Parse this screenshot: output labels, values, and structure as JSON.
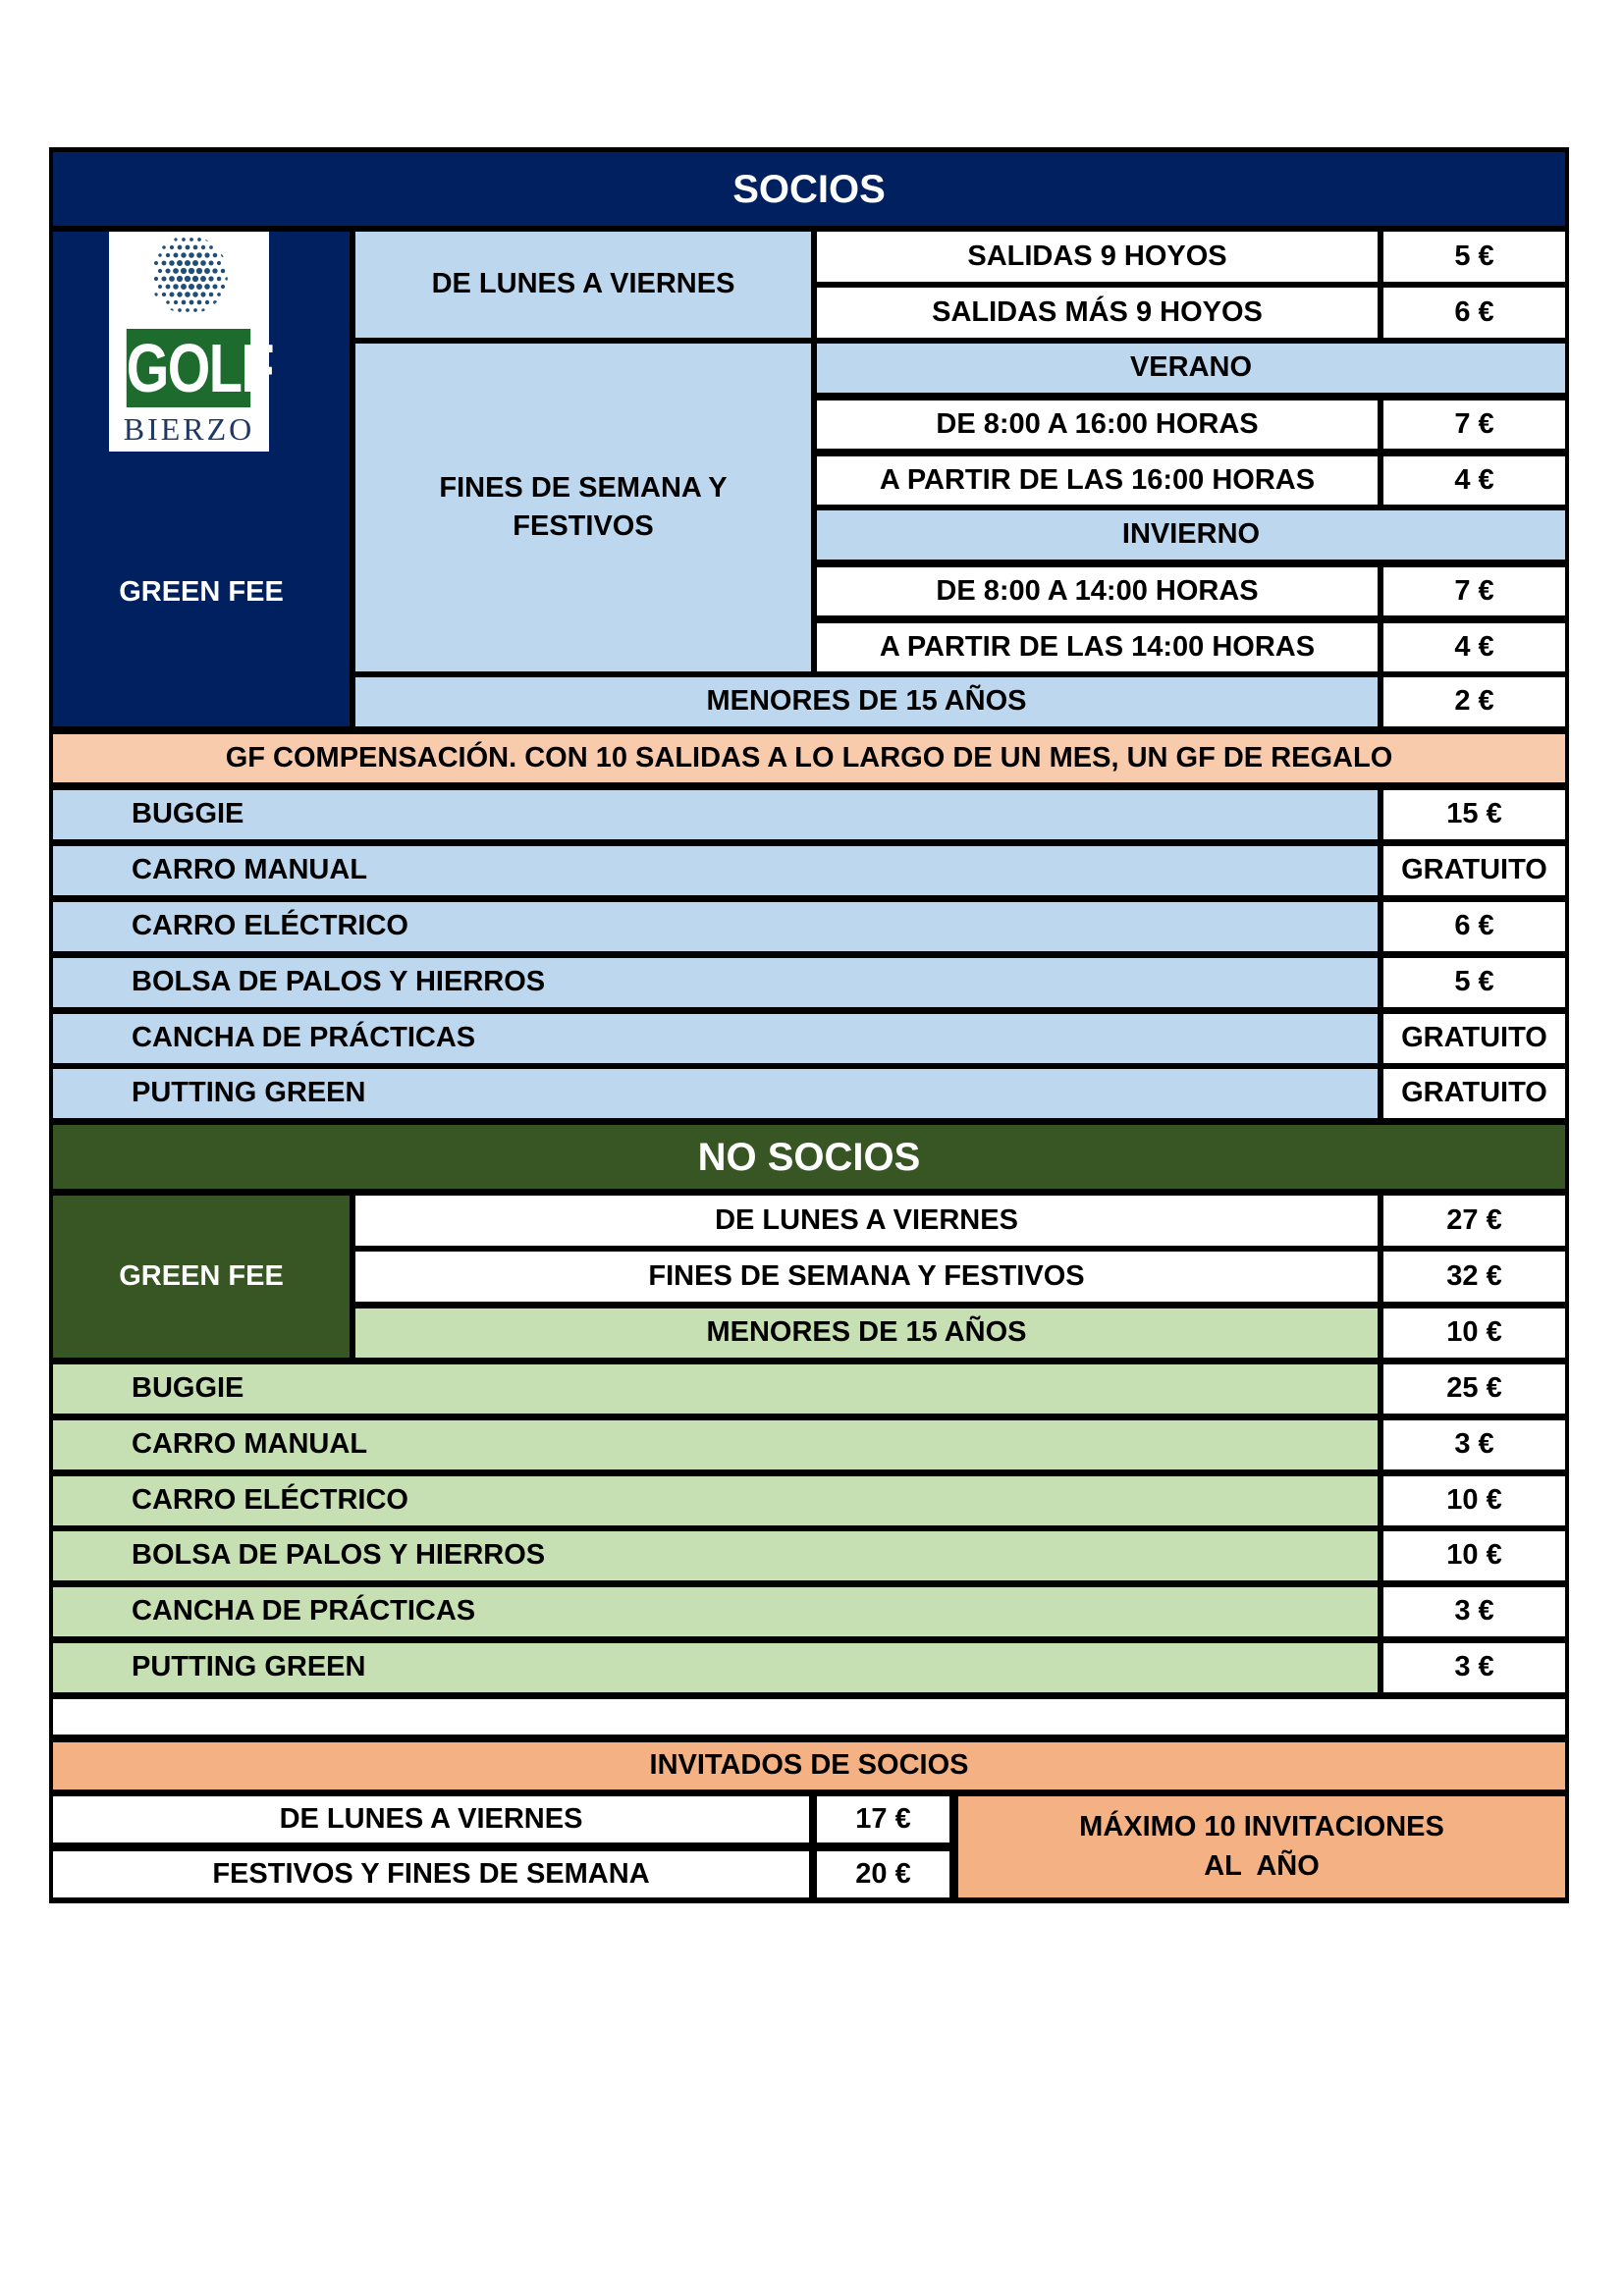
{
  "logo": {
    "text_top": "GOLF",
    "text_bottom": "BIERZO",
    "icon": "golf-ball-icon"
  },
  "colors": {
    "socios": "#002060",
    "socios_light": "#BDD7EE",
    "compensacion": "#F8CBAD",
    "no_socios": "#375623",
    "no_socios_light": "#C6E0B4",
    "invitados": "#F4B183"
  },
  "socios": {
    "title": "SOCIOS",
    "green_fee_label": "GREEN FEE",
    "weekdays": {
      "label": "DE LUNES A VIERNES",
      "rows": [
        {
          "label": "SALIDAS 9 HOYOS",
          "price": "5 €"
        },
        {
          "label": "SALIDAS MÁS 9 HOYOS",
          "price": "6 €"
        }
      ]
    },
    "weekends": {
      "label": "FINES DE SEMANA Y FESTIVOS",
      "summer": {
        "label": "VERANO",
        "rows": [
          {
            "label": "DE 8:00 A 16:00 HORAS",
            "price": "7 €"
          },
          {
            "label": "A PARTIR DE LAS 16:00 HORAS",
            "price": "4 €"
          }
        ]
      },
      "winter": {
        "label": "INVIERNO",
        "rows": [
          {
            "label": "DE 8:00 A 14:00 HORAS",
            "price": "7 €"
          },
          {
            "label": "A PARTIR DE LAS 14:00 HORAS",
            "price": "4 €"
          }
        ]
      }
    },
    "minors": {
      "label": "MENORES DE 15 AÑOS",
      "price": "2 €"
    },
    "compensation": "GF COMPENSACIÓN. CON 10 SALIDAS A LO LARGO DE UN MES, UN GF DE REGALO",
    "extras": [
      {
        "label": "BUGGIE",
        "price": "15 €"
      },
      {
        "label": "CARRO MANUAL",
        "price": "GRATUITO"
      },
      {
        "label": "CARRO ELÉCTRICO",
        "price": "6 €"
      },
      {
        "label": "BOLSA DE PALOS Y HIERROS",
        "price": "5 €"
      },
      {
        "label": "CANCHA DE PRÁCTICAS",
        "price": "GRATUITO"
      },
      {
        "label": "PUTTING GREEN",
        "price": "GRATUITO"
      }
    ]
  },
  "no_socios": {
    "title": "NO SOCIOS",
    "green_fee_label": "GREEN FEE",
    "green_fee": [
      {
        "label": "DE LUNES A VIERNES",
        "price": "27 €"
      },
      {
        "label": "FINES DE SEMANA Y FESTIVOS",
        "price": "32 €"
      },
      {
        "label": "MENORES DE 15 AÑOS",
        "price": "10 €"
      }
    ],
    "extras": [
      {
        "label": "BUGGIE",
        "price": "25 €"
      },
      {
        "label": "CARRO MANUAL",
        "price": "3 €"
      },
      {
        "label": "CARRO ELÉCTRICO",
        "price": "10 €"
      },
      {
        "label": "BOLSA DE PALOS Y HIERROS",
        "price": "10 €"
      },
      {
        "label": "CANCHA DE PRÁCTICAS",
        "price": "3 €"
      },
      {
        "label": "PUTTING GREEN",
        "price": "3 €"
      }
    ]
  },
  "invitados": {
    "title": "INVITADOS DE SOCIOS",
    "rows": [
      {
        "label": "DE LUNES A VIERNES",
        "price": "17 €"
      },
      {
        "label": "FESTIVOS Y FINES DE SEMANA",
        "price": "20 €"
      }
    ],
    "note_line1": "MÁXIMO 10 INVITACIONES",
    "note_line2": "AL  AÑO"
  }
}
